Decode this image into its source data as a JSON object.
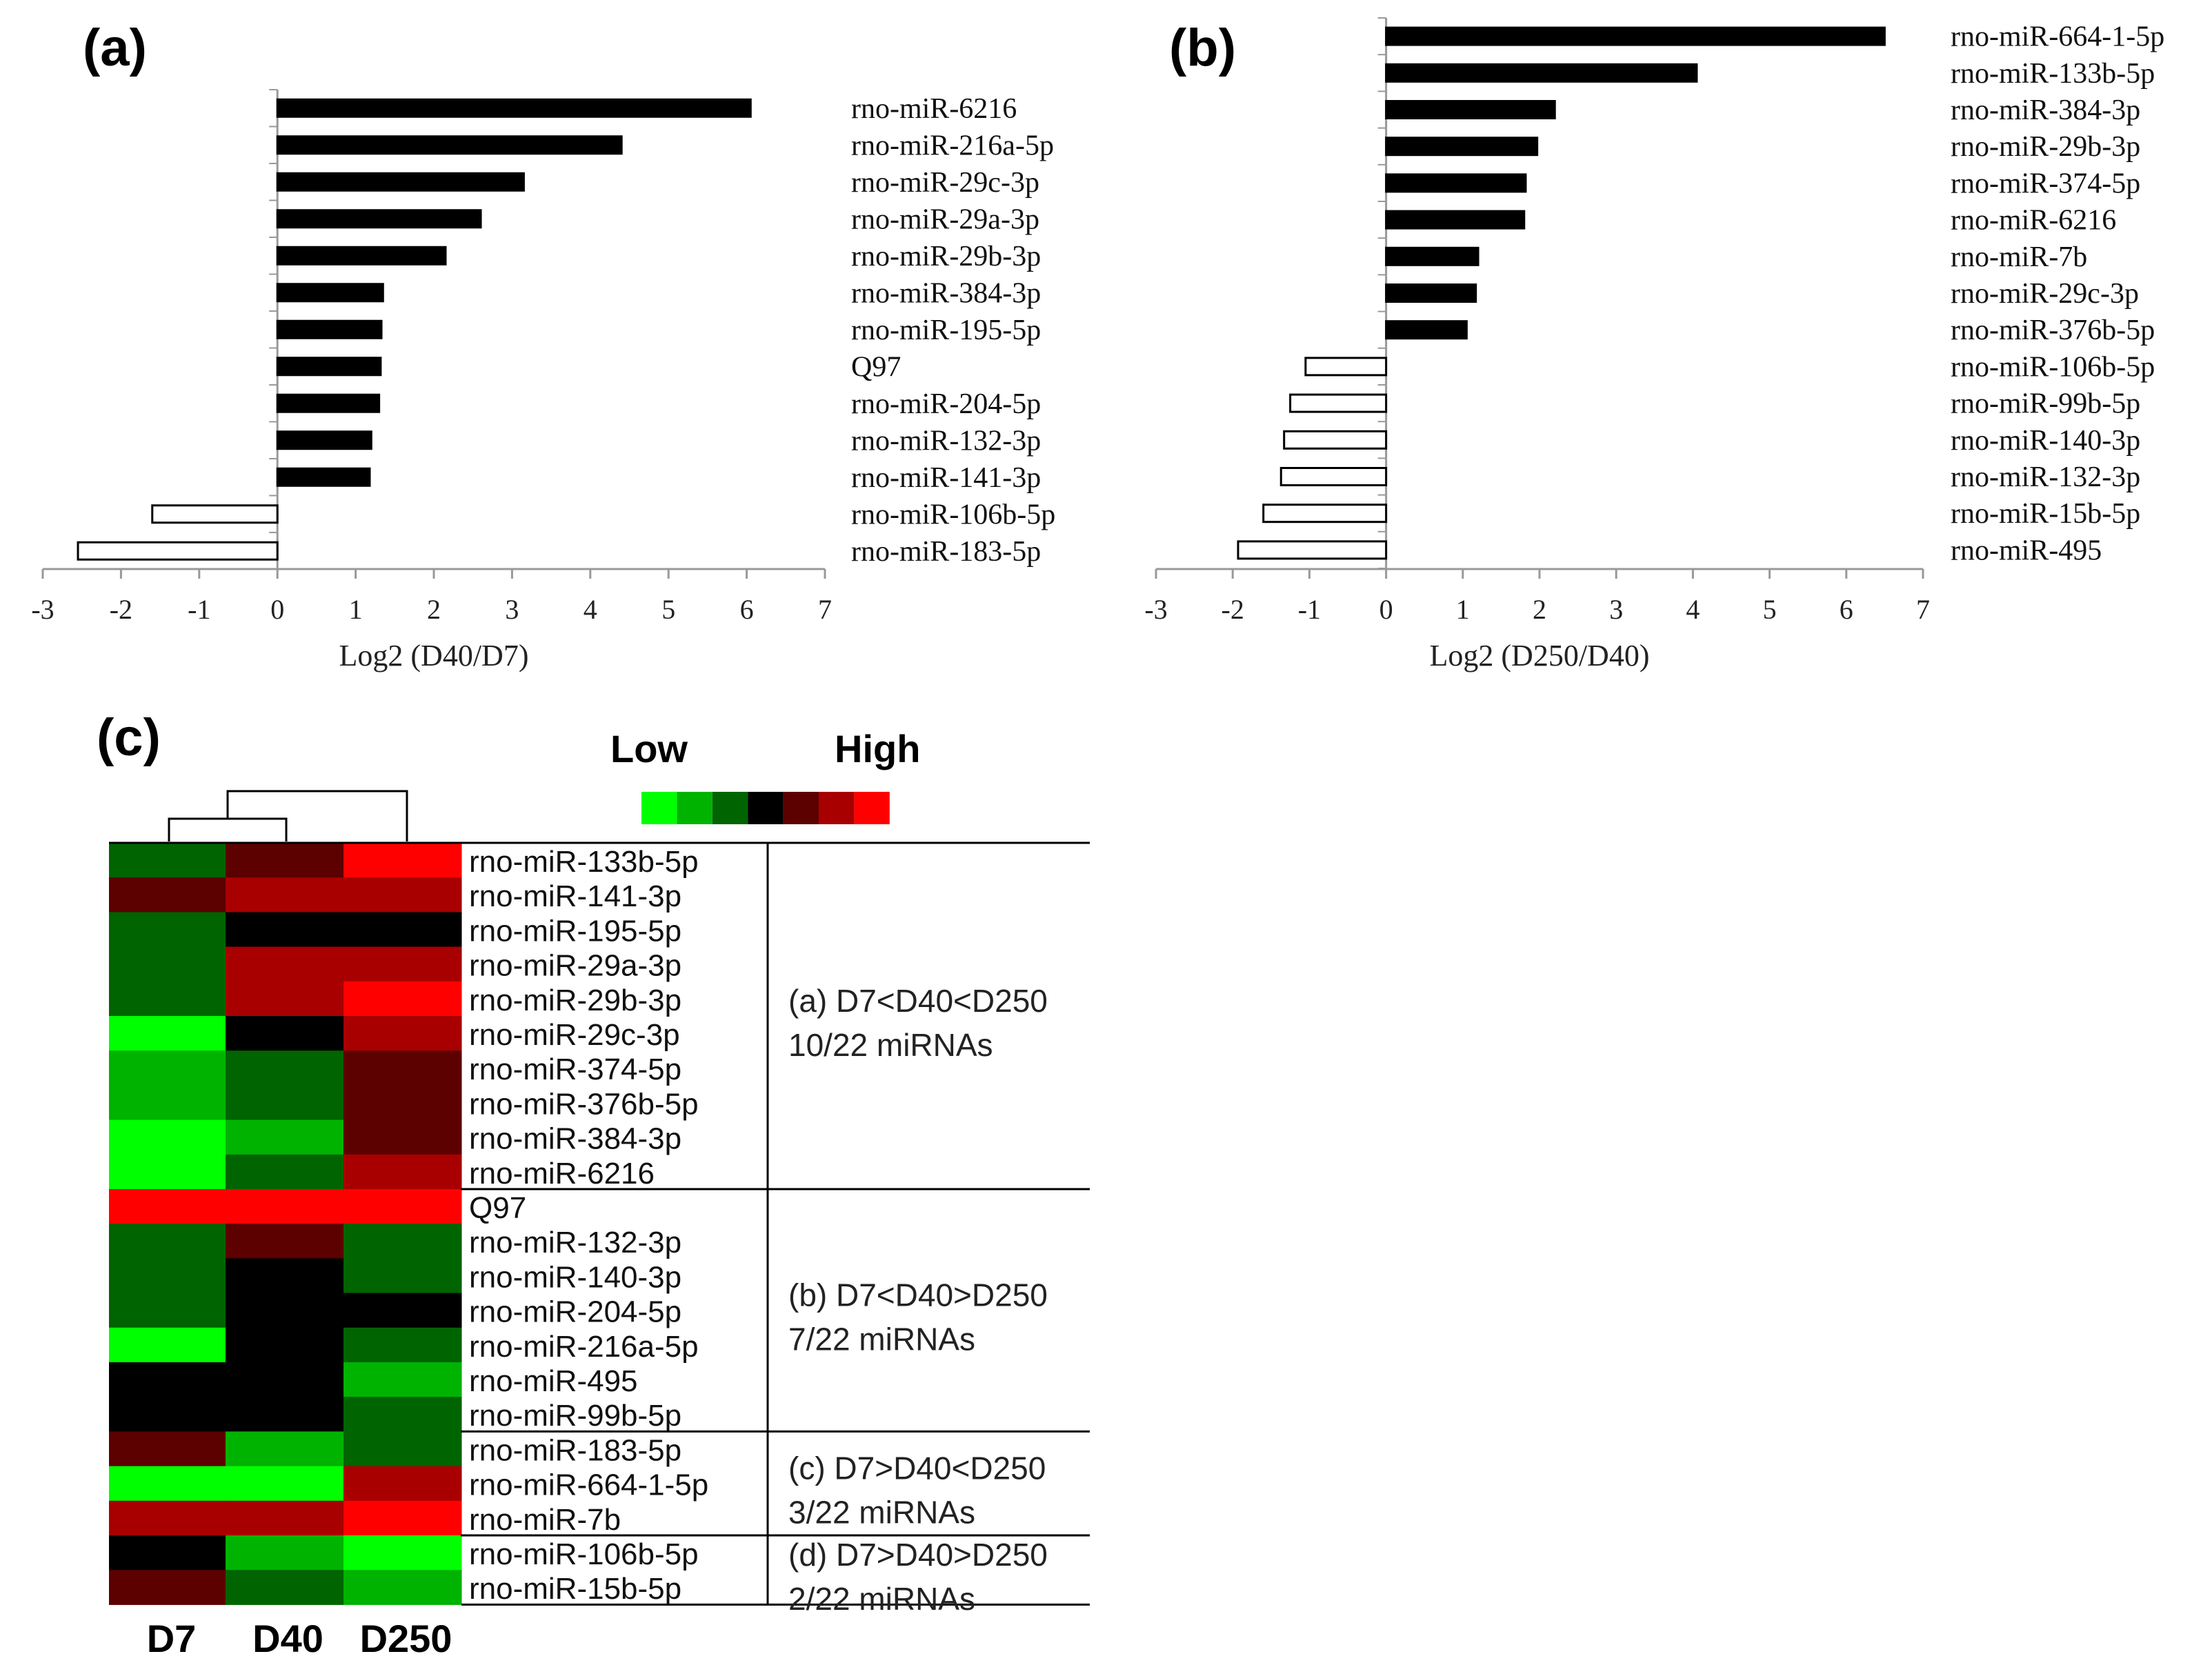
{
  "chart_data": [
    {
      "panel": "(a)",
      "type": "bar",
      "orientation": "horizontal",
      "xlabel": "Log2 (D40/D7)",
      "xlim": [
        -3,
        7
      ],
      "xticks": [
        "-3",
        "-2",
        "-1",
        "0",
        "1",
        "2",
        "3",
        "4",
        "5",
        "6",
        "7"
      ],
      "categories": [
        "rno-miR-6216",
        "rno-miR-216a-5p",
        "rno-miR-29c-3p",
        "rno-miR-29a-3p",
        "rno-miR-29b-3p",
        "rno-miR-384-3p",
        "rno-miR-195-5p",
        "Q97",
        "rno-miR-204-5p",
        "rno-miR-132-3p",
        "rno-miR-141-3p",
        "rno-miR-106b-5p",
        "rno-miR-183-5p"
      ],
      "values": [
        6.05,
        4.4,
        3.15,
        2.6,
        2.15,
        1.35,
        1.33,
        1.32,
        1.3,
        1.2,
        1.18,
        -1.6,
        -2.55
      ],
      "positive_color": "#000000",
      "negative_color": "#ffffff"
    },
    {
      "panel": "(b)",
      "type": "bar",
      "orientation": "horizontal",
      "xlabel": "Log2 (D250/D40)",
      "xlim": [
        -3,
        7
      ],
      "xticks": [
        "-3",
        "-2",
        "-1",
        "0",
        "1",
        "2",
        "3",
        "4",
        "5",
        "6",
        "7"
      ],
      "categories": [
        "rno-miR-664-1-5p",
        "rno-miR-133b-5p",
        "rno-miR-384-3p",
        "rno-miR-29b-3p",
        "rno-miR-374-5p",
        "rno-miR-6216",
        "rno-miR-7b",
        "rno-miR-29c-3p",
        "rno-miR-376b-5p",
        "rno-miR-106b-5p",
        "rno-miR-99b-5p",
        "rno-miR-140-3p",
        "rno-miR-132-3p",
        "rno-miR-15b-5p",
        "rno-miR-495"
      ],
      "values": [
        6.5,
        4.05,
        2.2,
        1.97,
        1.82,
        1.8,
        1.2,
        1.17,
        1.05,
        -1.05,
        -1.25,
        -1.33,
        -1.37,
        -1.6,
        -1.93
      ],
      "positive_color": "#000000",
      "negative_color": "#ffffff"
    },
    {
      "panel": "(c)",
      "type": "heatmap",
      "columns": [
        "D7",
        "D40",
        "D250"
      ],
      "rows": [
        "rno-miR-133b-5p",
        "rno-miR-141-3p",
        "rno-miR-195-5p",
        "rno-miR-29a-3p",
        "rno-miR-29b-3p",
        "rno-miR-29c-3p",
        "rno-miR-374-5p",
        "rno-miR-376b-5p",
        "rno-miR-384-3p",
        "rno-miR-6216",
        "Q97",
        "rno-miR-132-3p",
        "rno-miR-140-3p",
        "rno-miR-204-5p",
        "rno-miR-216a-5p",
        "rno-miR-495",
        "rno-miR-99b-5p",
        "rno-miR-183-5p",
        "rno-miR-664-1-5p",
        "rno-miR-7b",
        "rno-miR-106b-5p",
        "rno-miR-15b-5p"
      ],
      "level_range": [
        -4,
        4
      ],
      "levels": [
        [
          -1,
          1,
          4
        ],
        [
          1,
          2,
          2
        ],
        [
          -2,
          0,
          0
        ],
        [
          -1,
          3,
          3
        ],
        [
          -2,
          2,
          4
        ],
        [
          -4,
          0,
          2
        ],
        [
          -3,
          -2,
          1
        ],
        [
          -3,
          -1,
          1
        ],
        [
          -4,
          -3,
          1
        ],
        [
          -4,
          -1,
          2
        ],
        [
          4,
          4,
          4
        ],
        [
          -1,
          1,
          -1
        ],
        [
          -1,
          0,
          -2
        ],
        [
          -2,
          0,
          0
        ],
        [
          -4,
          0,
          -1
        ],
        [
          0,
          0,
          -3
        ],
        [
          0,
          0,
          -2
        ],
        [
          1,
          -3,
          -2
        ],
        [
          -4,
          -4,
          3
        ],
        [
          3,
          3,
          4
        ],
        [
          0,
          -3,
          -4
        ],
        [
          1,
          -1,
          -3
        ]
      ],
      "legend": {
        "low_label": "Low",
        "high_label": "High",
        "colors": [
          "#00ff00",
          "#00b300",
          "#006400",
          "#000000",
          "#5c0000",
          "#a80000",
          "#ff0000"
        ]
      },
      "groups": [
        {
          "label": "(a) D7<D40<D250",
          "count": "10/22 miRNAs",
          "rows": 10
        },
        {
          "label": "(b) D7<D40>D250",
          "count": "7/22 miRNAs",
          "rows": 7
        },
        {
          "label": "(c) D7>D40<D250",
          "count": "3/22 miRNAs",
          "rows": 3
        },
        {
          "label": "(d) D7>D40>D250",
          "count": "2/22 miRNAs",
          "rows": 2
        }
      ],
      "dendrogram": "D7 and D40 cluster first; D250 joins at the top"
    }
  ]
}
